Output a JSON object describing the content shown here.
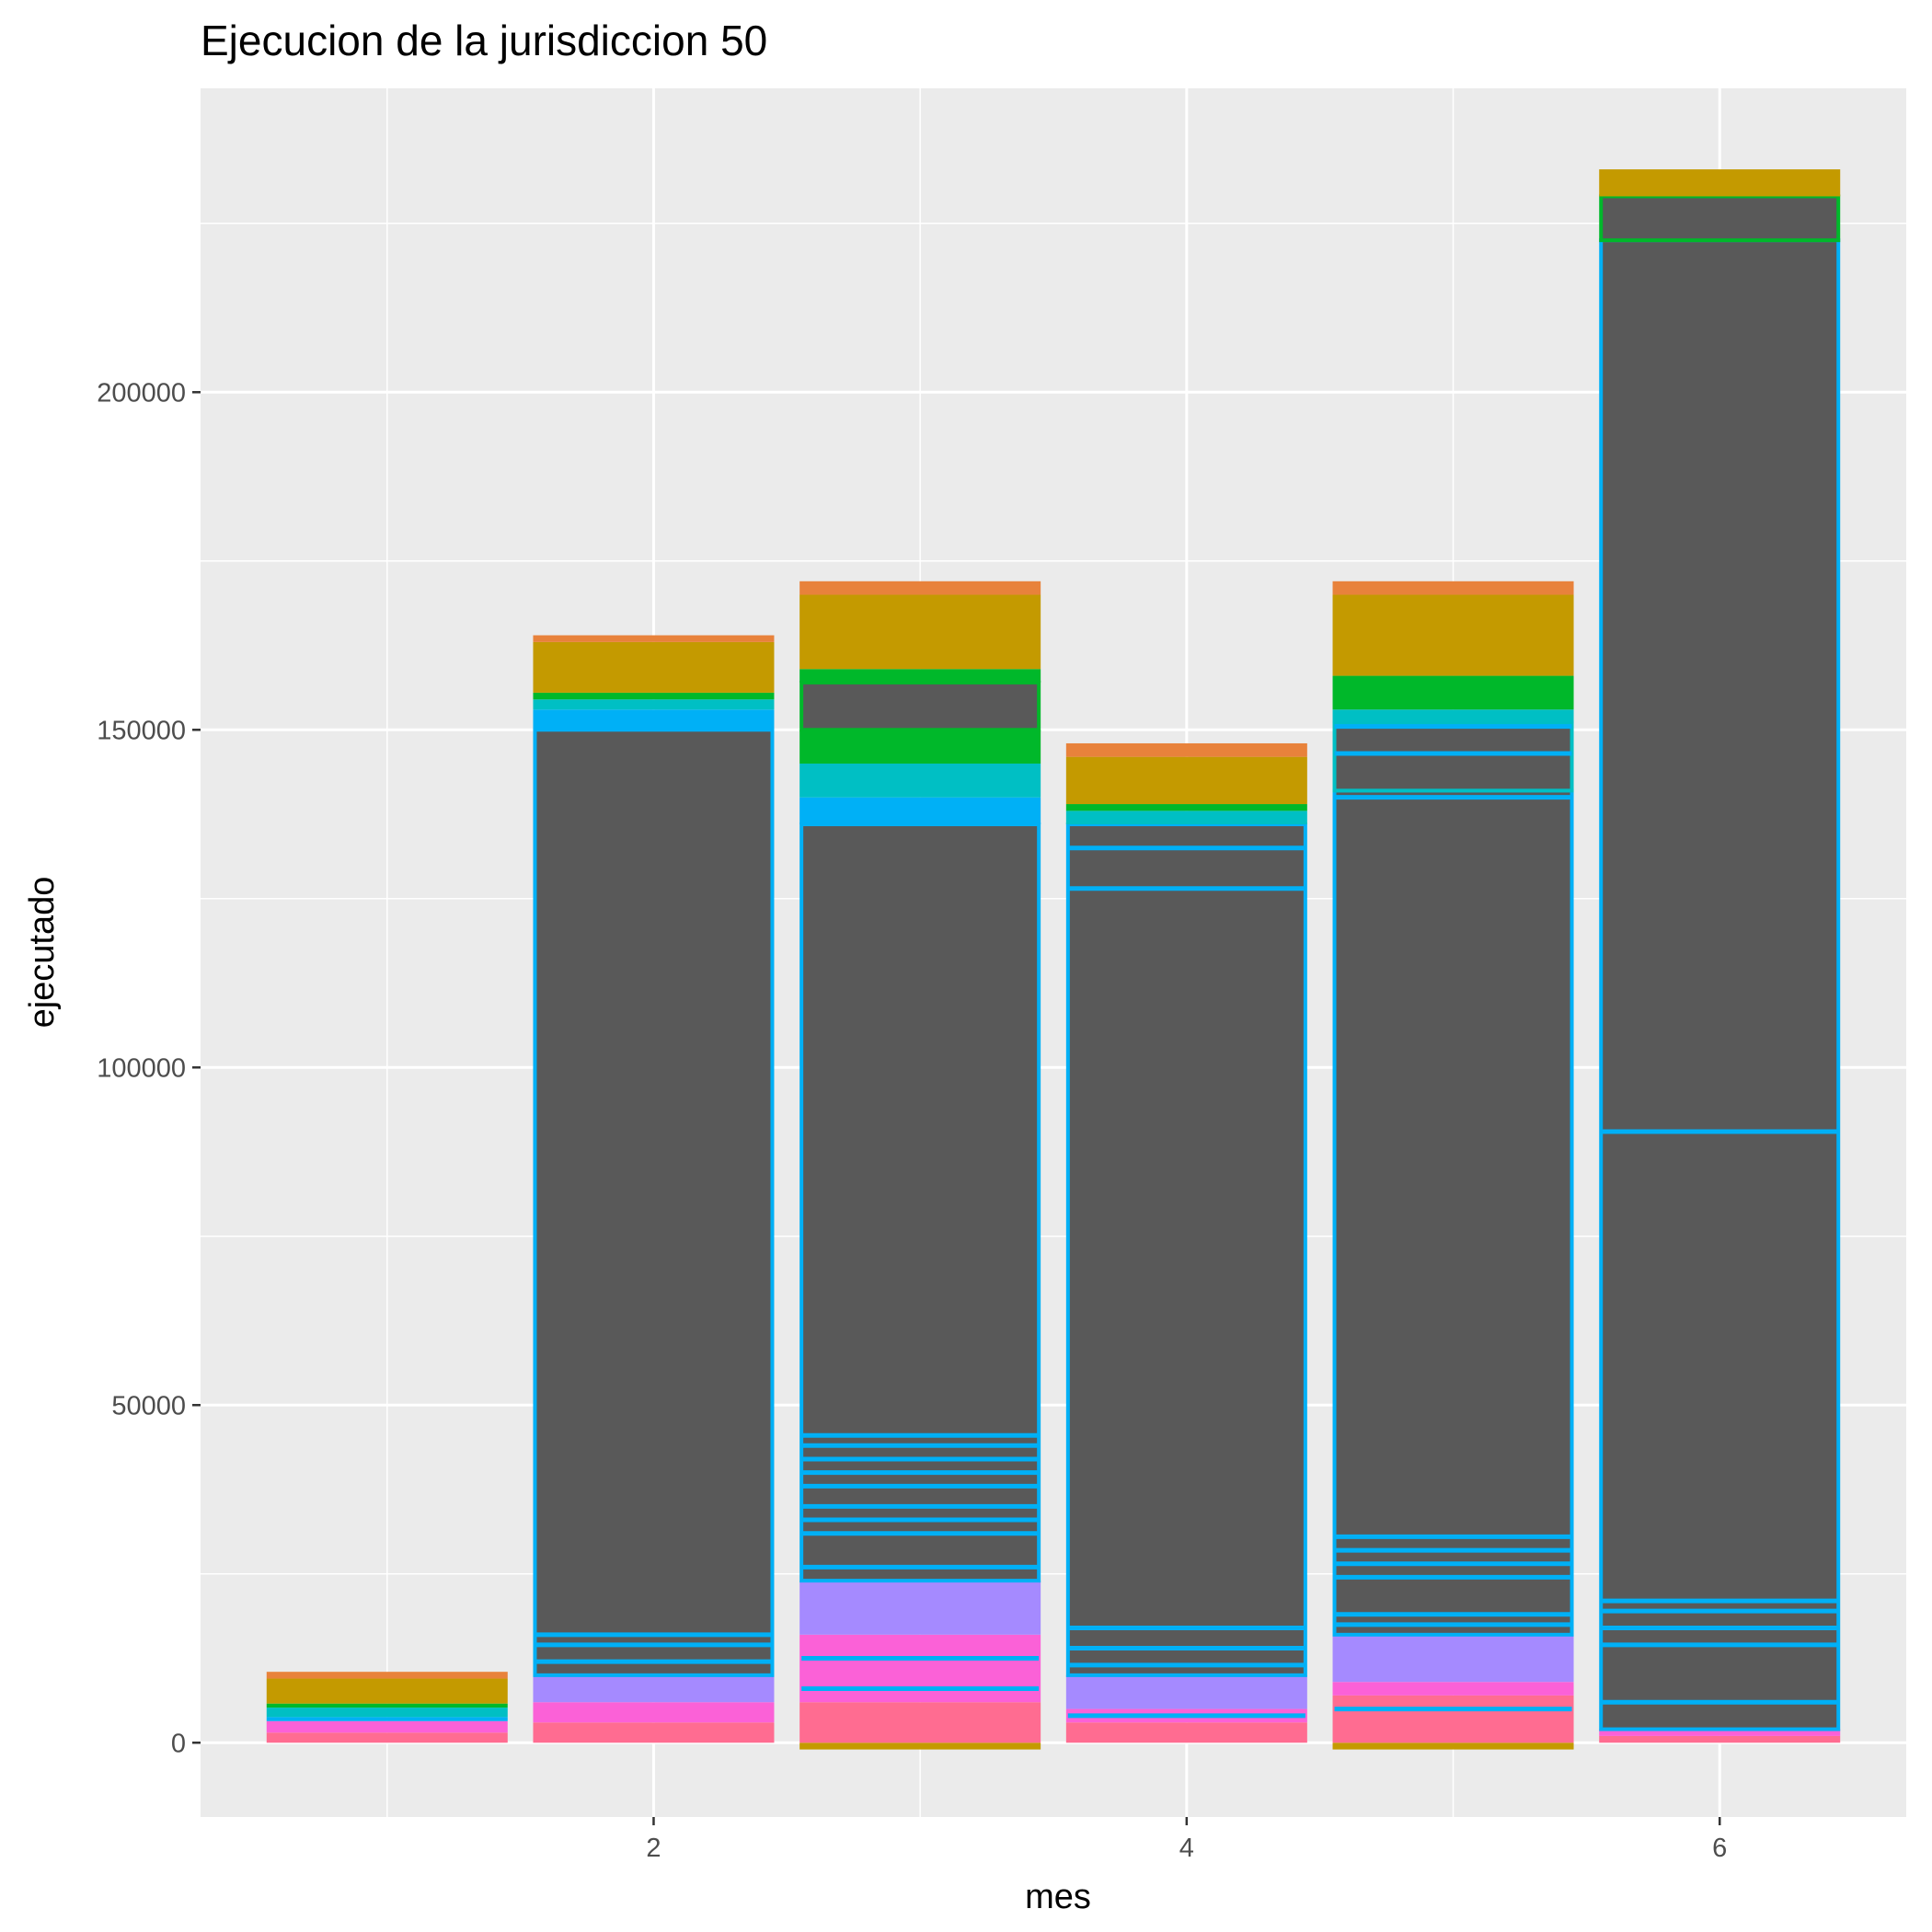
{
  "chart_data": {
    "type": "bar",
    "title": "Ejecucion de la jurisdiccion 50",
    "xlabel": "mes",
    "ylabel": "ejecutado",
    "x": [
      1,
      2,
      3,
      4,
      5,
      6
    ],
    "x_ticks": [
      2,
      4,
      6
    ],
    "x_tick_labels": [
      "2",
      "4",
      "6"
    ],
    "xlim": [
      0.3,
      6.7
    ],
    "y_ticks": [
      0,
      50000,
      100000,
      150000,
      200000
    ],
    "y_tick_labels": [
      "0",
      "50000",
      "100000",
      "150000",
      "200000"
    ],
    "ylim": [
      -11000,
      245000
    ],
    "grid": true,
    "legend": "none",
    "stacked": true,
    "colors": {
      "panel": "#EBEBEB",
      "grid": "#FFFFFF",
      "main_fill": "#595959",
      "outline": "#00B0F6",
      "gold": "#C49A00",
      "orange": "#E8823B",
      "green": "#00B82A",
      "teal": "#00BFC4",
      "purple": "#A58AFF",
      "pink": "#FB61D7",
      "rose": "#FF6C91"
    },
    "bars": [
      {
        "x": 1,
        "total": 10500,
        "segments": [
          {
            "from": 0,
            "to": 1500,
            "color": "#FF6C91"
          },
          {
            "from": 1500,
            "to": 3200,
            "color": "#FB61D7"
          },
          {
            "from": 3200,
            "to": 3800,
            "color": "#00B0F6"
          },
          {
            "from": 3800,
            "to": 5200,
            "color": "#00BFC4"
          },
          {
            "from": 5200,
            "to": 5800,
            "color": "#00B82A"
          },
          {
            "from": 5800,
            "to": 9500,
            "color": "#C49A00"
          },
          {
            "from": 9500,
            "to": 10500,
            "color": "#E8823B"
          }
        ],
        "lines": []
      },
      {
        "x": 2,
        "total": 164000,
        "segments": [
          {
            "from": 0,
            "to": 3000,
            "color": "#FF6C91"
          },
          {
            "from": 3000,
            "to": 6000,
            "color": "#FB61D7"
          },
          {
            "from": 6000,
            "to": 10000,
            "color": "#A58AFF"
          },
          {
            "from": 10000,
            "to": 150000,
            "color": "#595959",
            "outline": "#00B0F6"
          },
          {
            "from": 150000,
            "to": 153000,
            "color": "#00B0F6"
          },
          {
            "from": 153000,
            "to": 154500,
            "color": "#00BFC4"
          },
          {
            "from": 154500,
            "to": 155500,
            "color": "#00B82A"
          },
          {
            "from": 155500,
            "to": 163000,
            "color": "#C49A00"
          },
          {
            "from": 163000,
            "to": 164000,
            "color": "#E8823B"
          }
        ],
        "lines": [
          12000,
          14500,
          16000
        ]
      },
      {
        "x": 3,
        "total": 172000,
        "segments": [
          {
            "from": -1000,
            "to": 0,
            "color": "#C49A00"
          },
          {
            "from": 0,
            "to": 6000,
            "color": "#FF6C91"
          },
          {
            "from": 6000,
            "to": 16000,
            "color": "#FB61D7"
          },
          {
            "from": 16000,
            "to": 24000,
            "color": "#A58AFF"
          },
          {
            "from": 24000,
            "to": 136000,
            "color": "#595959",
            "outline": "#00B0F6"
          },
          {
            "from": 136000,
            "to": 140000,
            "color": "#00B0F6"
          },
          {
            "from": 140000,
            "to": 145000,
            "color": "#00BFC4"
          },
          {
            "from": 145000,
            "to": 150000,
            "color": "#00B82A"
          },
          {
            "from": 150000,
            "to": 157000,
            "color": "#595959",
            "outline": "#00B82A"
          },
          {
            "from": 157000,
            "to": 159000,
            "color": "#00B82A"
          },
          {
            "from": 159000,
            "to": 170000,
            "color": "#C49A00"
          },
          {
            "from": 170000,
            "to": 172000,
            "color": "#E8823B"
          }
        ],
        "lines": [
          8000,
          12500,
          26000,
          31000,
          33000,
          35000,
          38000,
          40000,
          42000,
          44000,
          45500
        ]
      },
      {
        "x": 4,
        "total": 148000,
        "segments": [
          {
            "from": 0,
            "to": 3000,
            "color": "#FF6C91"
          },
          {
            "from": 3000,
            "to": 5000,
            "color": "#FB61D7"
          },
          {
            "from": 5000,
            "to": 10000,
            "color": "#A58AFF"
          },
          {
            "from": 10000,
            "to": 136000,
            "color": "#595959",
            "outline": "#00B0F6"
          },
          {
            "from": 136000,
            "to": 138000,
            "color": "#00BFC4"
          },
          {
            "from": 138000,
            "to": 139000,
            "color": "#00B82A"
          },
          {
            "from": 139000,
            "to": 146000,
            "color": "#C49A00"
          },
          {
            "from": 146000,
            "to": 148000,
            "color": "#E8823B"
          }
        ],
        "lines": [
          4000,
          11500,
          14000,
          17000,
          126500,
          132500
        ]
      },
      {
        "x": 5,
        "total": 172000,
        "segments": [
          {
            "from": -1000,
            "to": 0,
            "color": "#C49A00"
          },
          {
            "from": 0,
            "to": 7000,
            "color": "#FF6C91"
          },
          {
            "from": 7000,
            "to": 9000,
            "color": "#FB61D7"
          },
          {
            "from": 9000,
            "to": 16000,
            "color": "#A58AFF"
          },
          {
            "from": 16000,
            "to": 141000,
            "color": "#595959",
            "outline": "#00B0F6"
          },
          {
            "from": 141000,
            "to": 151000,
            "color": "#595959",
            "outline": "#00BFC4"
          },
          {
            "from": 151000,
            "to": 153000,
            "color": "#00BFC4"
          },
          {
            "from": 153000,
            "to": 158000,
            "color": "#00B82A"
          },
          {
            "from": 158000,
            "to": 170000,
            "color": "#C49A00"
          },
          {
            "from": 170000,
            "to": 172000,
            "color": "#E8823B"
          }
        ],
        "lines": [
          5000,
          17500,
          19000,
          24500,
          26500,
          28500,
          30500,
          140000,
          146500,
          150500
        ]
      },
      {
        "x": 6,
        "total": 233000,
        "segments": [
          {
            "from": 0,
            "to": 1000,
            "color": "#FF6C91"
          },
          {
            "from": 1000,
            "to": 2000,
            "color": "#FB61D7"
          },
          {
            "from": 2000,
            "to": 222500,
            "color": "#595959",
            "outline": "#00B0F6"
          },
          {
            "from": 222500,
            "to": 229000,
            "color": "#595959",
            "outline": "#00B82A"
          },
          {
            "from": 229000,
            "to": 233000,
            "color": "#C49A00"
          }
        ],
        "lines": [
          6000,
          14500,
          17000,
          19500,
          21000,
          90500
        ]
      }
    ]
  }
}
